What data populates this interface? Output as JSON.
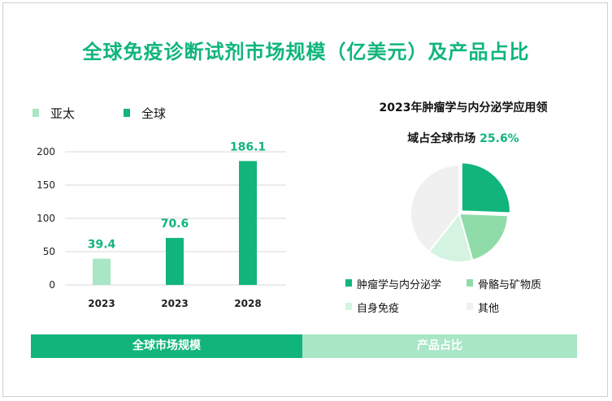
{
  "title": "全球免疫诊断试剂市场规模（亿美元）及产品占比",
  "colors": {
    "accent": "#11b57b",
    "light": "#a8e6c5",
    "pie_orange": "#8fdca9",
    "pie_light": "#d4f3e1",
    "pie_gray": "#f0f0f0"
  },
  "chart_data": [
    {
      "type": "bar",
      "legend": [
        "亚太",
        "全球"
      ],
      "categories": [
        "2023",
        "2023",
        "2028"
      ],
      "values": [
        39.4,
        70.6,
        186.1
      ],
      "value_labels": [
        "39.4",
        "70.6",
        "186.1"
      ],
      "series_of_bar": [
        "亚太",
        "全球",
        "全球"
      ],
      "ylim": [
        0,
        200
      ],
      "yticks": [
        0,
        50,
        100,
        150,
        200
      ],
      "grid": true,
      "legend_position": "top-left"
    },
    {
      "type": "pie",
      "title_line1": "2023年肿瘤学与内分泌学应用领",
      "title_line2": "域占全球市场",
      "title_highlight": "25.6%",
      "labels": [
        "肿瘤学与内分泌学",
        "骨骼与矿物质",
        "自身免疫",
        "其他"
      ],
      "values": [
        25.6,
        20,
        15,
        39.4
      ],
      "legend_position": "bottom"
    }
  ],
  "tabs": [
    "全球市场规模",
    "产品占比"
  ]
}
